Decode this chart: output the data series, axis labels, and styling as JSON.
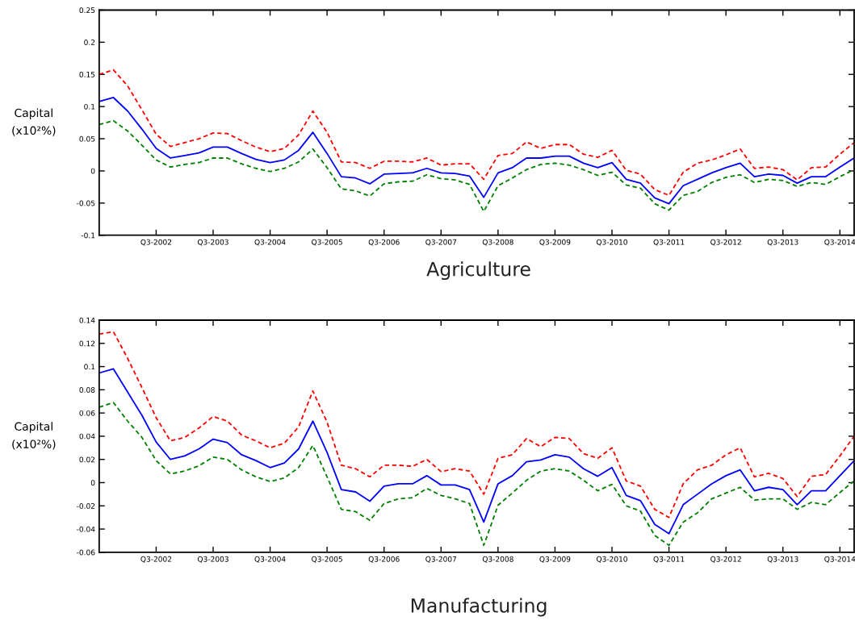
{
  "chart_data": [
    {
      "type": "line",
      "xlabel": "Agriculture",
      "ylabel": "Capital\n(x10²%)",
      "categories": [
        null,
        null,
        null,
        null,
        "Q3-2002",
        null,
        null,
        null,
        "Q3-2003",
        null,
        null,
        null,
        "Q3-2004",
        null,
        null,
        null,
        "Q3-2005",
        null,
        null,
        null,
        "Q3-2006",
        null,
        null,
        null,
        "Q3-2007",
        null,
        null,
        null,
        "Q3-2008",
        null,
        null,
        null,
        "Q3-2009",
        null,
        null,
        null,
        "Q3-2010",
        null,
        null,
        null,
        "Q3-2011",
        null,
        null,
        null,
        "Q3-2012",
        null,
        null,
        null,
        "Q3-2013",
        null,
        null,
        null,
        "Q3-2014",
        null
      ],
      "ylim": [
        -0.1,
        0.25
      ],
      "yticks": [
        -0.1,
        -0.05,
        0,
        0.05,
        0.1,
        0.15,
        0.2,
        0.25
      ],
      "grid": false,
      "marker": "none",
      "series": [
        {
          "color": "#ff0000",
          "line_style": "dashed",
          "values": [
            0.15,
            0.157,
            0.132,
            0.095,
            0.057,
            0.038,
            0.044,
            0.05,
            0.059,
            0.058,
            0.047,
            0.037,
            0.03,
            0.035,
            0.056,
            0.093,
            0.06,
            0.014,
            0.013,
            0.004,
            0.015,
            0.015,
            0.014,
            0.02,
            0.009,
            0.011,
            0.011,
            -0.013,
            0.024,
            0.027,
            0.045,
            0.035,
            0.041,
            0.041,
            0.026,
            0.021,
            0.032,
            0.001,
            -0.005,
            -0.029,
            -0.038,
            -0.002,
            0.012,
            0.017,
            0.025,
            0.034,
            0.004,
            0.006,
            0.002,
            -0.014,
            0.005,
            0.006,
            0.026,
            0.044
          ]
        },
        {
          "color": "#0000ff",
          "line_style": "solid",
          "values": [
            0.108,
            0.114,
            0.093,
            0.065,
            0.035,
            0.02,
            0.024,
            0.028,
            0.037,
            0.037,
            0.027,
            0.018,
            0.013,
            0.017,
            0.032,
            0.06,
            0.027,
            -0.009,
            -0.011,
            -0.02,
            -0.005,
            -0.004,
            -0.003,
            0.004,
            -0.003,
            -0.004,
            -0.008,
            -0.041,
            -0.003,
            0.005,
            0.02,
            0.02,
            0.023,
            0.023,
            0.012,
            0.005,
            0.013,
            -0.013,
            -0.019,
            -0.042,
            -0.051,
            -0.023,
            -0.013,
            -0.003,
            0.005,
            0.012,
            -0.009,
            -0.005,
            -0.007,
            -0.019,
            -0.009,
            -0.009,
            0.006,
            0.02
          ]
        },
        {
          "color": "#008000",
          "line_style": "dashed",
          "values": [
            0.072,
            0.078,
            0.062,
            0.04,
            0.017,
            0.006,
            0.01,
            0.013,
            0.02,
            0.02,
            0.011,
            0.004,
            -0.001,
            0.004,
            0.014,
            0.034,
            0.005,
            -0.028,
            -0.031,
            -0.039,
            -0.02,
            -0.017,
            -0.016,
            -0.006,
            -0.012,
            -0.014,
            -0.021,
            -0.063,
            -0.023,
            -0.011,
            0.002,
            0.01,
            0.012,
            0.009,
            0.002,
            -0.007,
            -0.002,
            -0.022,
            -0.027,
            -0.051,
            -0.061,
            -0.038,
            -0.032,
            -0.018,
            -0.01,
            -0.006,
            -0.018,
            -0.013,
            -0.015,
            -0.024,
            -0.018,
            -0.021,
            -0.009,
            0.002
          ]
        }
      ]
    },
    {
      "type": "line",
      "xlabel": "Manufacturing",
      "ylabel": "Capital\n(x10²%)",
      "categories": [
        null,
        null,
        null,
        null,
        "Q3-2002",
        null,
        null,
        null,
        "Q3-2003",
        null,
        null,
        null,
        "Q3-2004",
        null,
        null,
        null,
        "Q3-2005",
        null,
        null,
        null,
        "Q3-2006",
        null,
        null,
        null,
        "Q3-2007",
        null,
        null,
        null,
        "Q3-2008",
        null,
        null,
        null,
        "Q3-2009",
        null,
        null,
        null,
        "Q3-2010",
        null,
        null,
        null,
        "Q3-2011",
        null,
        null,
        null,
        "Q3-2012",
        null,
        null,
        null,
        "Q3-2013",
        null,
        null,
        null,
        "Q3-2014",
        null
      ],
      "ylim": [
        -0.06,
        0.14
      ],
      "yticks": [
        -0.06,
        -0.04,
        -0.02,
        0,
        0.02,
        0.04,
        0.06,
        0.08,
        0.1,
        0.12,
        0.14
      ],
      "grid": false,
      "marker": "none",
      "series": [
        {
          "color": "#ff0000",
          "line_style": "dashed",
          "values": [
            0.128,
            0.13,
            0.107,
            0.082,
            0.056,
            0.036,
            0.039,
            0.047,
            0.057,
            0.053,
            0.041,
            0.036,
            0.03,
            0.034,
            0.048,
            0.079,
            0.052,
            0.015,
            0.012,
            0.005,
            0.015,
            0.015,
            0.014,
            0.02,
            0.0095,
            0.012,
            0.01,
            -0.01,
            0.021,
            0.024,
            0.038,
            0.031,
            0.039,
            0.038,
            0.025,
            0.021,
            0.03,
            0.0015,
            -0.003,
            -0.023,
            -0.03,
            -0.001,
            0.011,
            0.015,
            0.024,
            0.03,
            0.005,
            0.008,
            0.0035,
            -0.012,
            0.0055,
            0.007,
            0.023,
            0.04
          ]
        },
        {
          "color": "#0000ff",
          "line_style": "solid",
          "values": [
            0.0945,
            0.098,
            0.078,
            0.058,
            0.035,
            0.02,
            0.023,
            0.029,
            0.0375,
            0.0345,
            0.024,
            0.019,
            0.013,
            0.017,
            0.029,
            0.053,
            0.026,
            -0.006,
            -0.008,
            -0.016,
            -0.003,
            -0.001,
            -0.001,
            0.006,
            -0.002,
            -0.002,
            -0.006,
            -0.034,
            -0.001,
            0.006,
            0.018,
            0.0195,
            0.024,
            0.022,
            0.012,
            0.0055,
            0.013,
            -0.011,
            -0.0155,
            -0.036,
            -0.044,
            -0.019,
            -0.01,
            -0.001,
            0.006,
            0.011,
            -0.007,
            -0.004,
            -0.006,
            -0.019,
            -0.007,
            -0.007,
            0.006,
            0.019
          ]
        },
        {
          "color": "#008000",
          "line_style": "dashed",
          "values": [
            0.065,
            0.069,
            0.053,
            0.039,
            0.019,
            0.0075,
            0.01,
            0.0145,
            0.022,
            0.02,
            0.011,
            0.005,
            0.001,
            0.004,
            0.013,
            0.032,
            0.005,
            -0.023,
            -0.025,
            -0.0325,
            -0.018,
            -0.014,
            -0.013,
            -0.005,
            -0.011,
            -0.014,
            -0.018,
            -0.054,
            -0.0195,
            -0.009,
            0.002,
            0.01,
            0.012,
            0.01,
            0.002,
            -0.007,
            -0.0015,
            -0.02,
            -0.0245,
            -0.0455,
            -0.054,
            -0.034,
            -0.026,
            -0.014,
            -0.009,
            -0.004,
            -0.015,
            -0.014,
            -0.014,
            -0.023,
            -0.017,
            -0.019,
            -0.0085,
            0.0015
          ]
        }
      ]
    }
  ]
}
